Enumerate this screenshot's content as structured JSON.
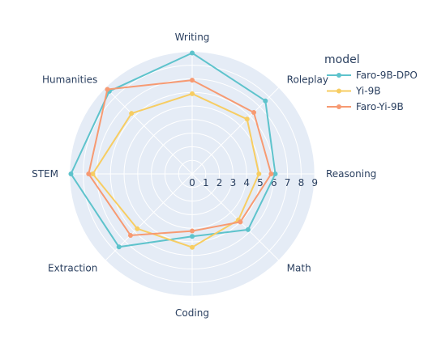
{
  "chart_data": {
    "type": "radar",
    "axis_labels": [
      "Writing",
      "Roleplay",
      "Reasoning",
      "Math",
      "Coding",
      "Extraction",
      "STEM",
      "Humanities"
    ],
    "radial_ticks": [
      "0",
      "1",
      "2",
      "3",
      "4",
      "5",
      "6",
      "7",
      "8",
      "9"
    ],
    "range": [
      0,
      9
    ],
    "grid": true,
    "legend": {
      "title": "model",
      "placement": "top-right"
    },
    "series": [
      {
        "name": "Faro-9B-DPO",
        "color": "#5ec3cc",
        "values": [
          8.9,
          7.6,
          6.1,
          5.8,
          4.6,
          7.6,
          8.9,
          8.6
        ]
      },
      {
        "name": "Yi-9B",
        "color": "#f7cd62",
        "values": [
          5.9,
          5.7,
          4.9,
          4.8,
          5.4,
          5.7,
          7.3,
          6.3
        ]
      },
      {
        "name": "Faro-Yi-9B",
        "color": "#f79a72",
        "values": [
          6.9,
          6.4,
          5.8,
          5.0,
          4.2,
          6.4,
          7.6,
          8.8
        ]
      }
    ]
  }
}
